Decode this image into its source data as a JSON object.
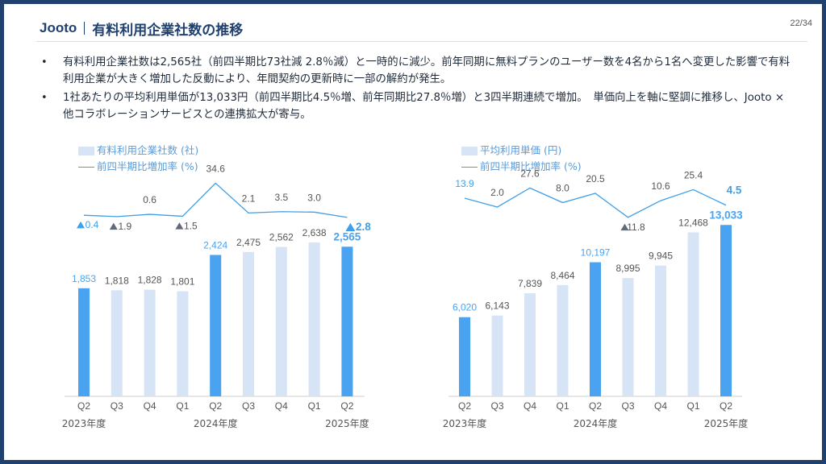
{
  "header": {
    "brand": "Jooto",
    "title": "有料利用企業社数の推移",
    "page": "22/34"
  },
  "bullets": [
    "有料利用企業社数は2,565社（前四半期比73社減 2.8％減）と一時的に減少。前年同期に無料プランのユーザー数を4名から1名へ変更した影響で有料利用企業が大きく増加した反動により、年間契約の更新時に一部の解約が発生。",
    "1社あたりの平均利用単価が13,033円（前四半期比4.5％増、前年同期比27.8％増）と3四半期連続で増加。　単価向上を軸に堅調に推移し、Jooto × 他コラボレーションサービスとの連携拡大が寄与。"
  ],
  "colors": {
    "highlight": "#4aa3f0",
    "normal": "#d6e4f5",
    "line": "#3f9fe8",
    "axis_text": "#555555",
    "marker": "#5f6b7a"
  },
  "chart_data": [
    {
      "type": "bar",
      "categories": [
        "Q2",
        "Q3",
        "Q4",
        "Q1",
        "Q2",
        "Q3",
        "Q4",
        "Q1",
        "Q2"
      ],
      "year_groups": [
        "2023年度",
        "2024年度",
        "2025年度"
      ],
      "legend": {
        "bar": "有料利用企業社数 (社)",
        "line": "前四半期比増加率 (%)"
      },
      "series": [
        {
          "name": "有料利用企業社数 (社)",
          "values": [
            1853,
            1818,
            1828,
            1801,
            2424,
            2475,
            2562,
            2638,
            2565
          ],
          "labels": [
            "1,853",
            "1,818",
            "1,828",
            "1,801",
            "2,424",
            "2,475",
            "2,562",
            "2,638",
            "2,565"
          ]
        },
        {
          "name": "前四半期比増加率 (%)",
          "values": [
            -0.4,
            -1.9,
            0.6,
            -1.5,
            34.6,
            2.1,
            3.5,
            3.0,
            -2.8
          ],
          "labels": [
            "0.4",
            "1.9",
            "0.6",
            "1.5",
            "34.6",
            "2.1",
            "3.5",
            "3.0",
            "2.8"
          ]
        }
      ],
      "highlight": [
        0,
        4,
        8
      ]
    },
    {
      "type": "bar",
      "categories": [
        "Q2",
        "Q3",
        "Q4",
        "Q1",
        "Q2",
        "Q3",
        "Q4",
        "Q1",
        "Q2"
      ],
      "year_groups": [
        "2023年度",
        "2024年度",
        "2025年度"
      ],
      "legend": {
        "bar": "平均利用単価 (円)",
        "line": "前四半期比増加率 (%)"
      },
      "series": [
        {
          "name": "平均利用単価 (円)",
          "values": [
            6020,
            6143,
            7839,
            8464,
            10197,
            8995,
            9945,
            12468,
            13033
          ],
          "labels": [
            "6,020",
            "6,143",
            "7,839",
            "8,464",
            "10,197",
            "8,995",
            "9,945",
            "12,468",
            "13,033"
          ]
        },
        {
          "name": "前四半期比増加率 (%)",
          "values": [
            13.9,
            2.0,
            27.6,
            8.0,
            20.5,
            -11.8,
            10.6,
            25.4,
            4.5
          ],
          "labels": [
            "13.9",
            "2.0",
            "27.6",
            "8.0",
            "20.5",
            "11.8",
            "10.6",
            "25.4",
            "4.5"
          ]
        }
      ],
      "highlight": [
        0,
        4,
        8
      ]
    }
  ]
}
